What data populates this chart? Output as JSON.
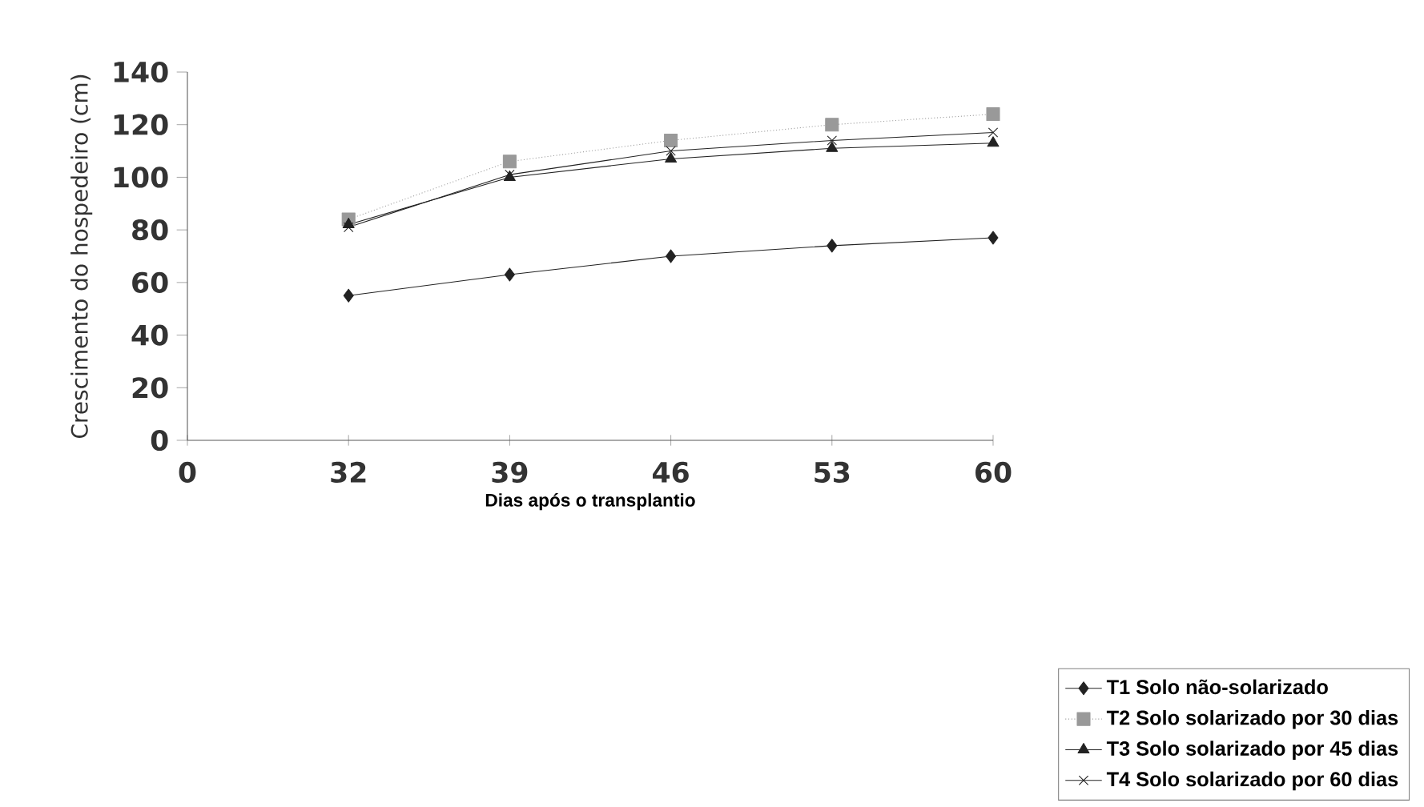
{
  "chart_data": {
    "type": "line",
    "xlabel": "Dias após o transplantio",
    "ylabel": "Crescimento do hospedeiro (cm)",
    "categories": [
      "0",
      "32",
      "39",
      "46",
      "53",
      "60"
    ],
    "series": [
      {
        "name": "**T1** Solo não-solarizado",
        "color": "#222222",
        "marker": "diamond",
        "line_style": "solid",
        "values": [
          null,
          55,
          63,
          70,
          74,
          77
        ]
      },
      {
        "name": "**T2** Solo solarizado por 30 dias",
        "color": "#999999",
        "marker": "square",
        "line_style": "dotted",
        "values": [
          null,
          84,
          106,
          114,
          120,
          124
        ]
      },
      {
        "name": "**T3** Solo solarizado por 45 dias",
        "color": "#222222",
        "marker": "triangle",
        "line_style": "solid",
        "values": [
          null,
          82,
          100,
          107,
          111,
          113
        ]
      },
      {
        "name": "**T4** Solo solarizado por 60 dias",
        "color": "#222222",
        "marker": "cross",
        "line_style": "solid",
        "values": [
          null,
          81,
          101,
          110,
          114,
          117
        ]
      }
    ],
    "ylim": [
      0,
      140
    ],
    "yticks": [
      0,
      20,
      40,
      60,
      80,
      100,
      120,
      140
    ],
    "legend": "bottom right",
    "grid": false
  }
}
